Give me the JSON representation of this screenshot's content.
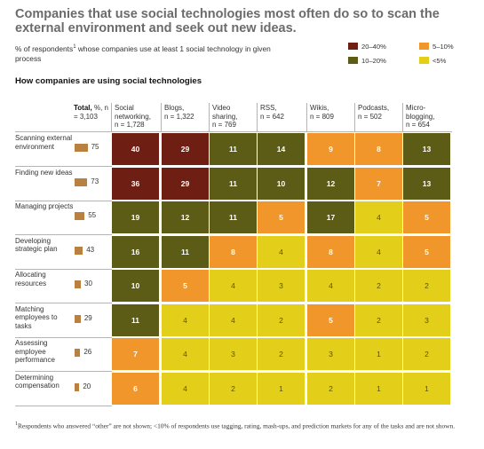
{
  "title": "Companies that use social technologies most often do so to scan the external environment and seek out new ideas.",
  "subtitle_pre": "% of respondents",
  "subtitle_sup": "1",
  "subtitle_post": " whose companies use at least 1 social technology in given process",
  "legend": [
    {
      "label": "20–40%",
      "color": "#6e1e12"
    },
    {
      "label": "5–10%",
      "color": "#f0962a"
    },
    {
      "label": "10–20%",
      "color": "#5d5c16"
    },
    {
      "label": "<5%",
      "color": "#e3cf1a"
    }
  ],
  "section_title": "How companies are using social technologies",
  "footnote_sup": "1",
  "footnote": "Respondents who answered “other” are not shown; <10% of respondents use tagging, rating, mash-ups, and prediction markets for any of the tasks and are not shown.",
  "chart_data": {
    "type": "heatmap",
    "total_header": {
      "label": "Total,",
      "sub": " %, n = 3,103"
    },
    "columns": [
      {
        "label": "Social networking,",
        "n": "n = 1,728"
      },
      {
        "label": "Blogs,",
        "n": "n = 1,322"
      },
      {
        "label": "Video sharing,",
        "n": "n = 769"
      },
      {
        "label": "RSS,",
        "n": "n = 642"
      },
      {
        "label": "Wikis,",
        "n": "n = 809"
      },
      {
        "label": "Podcasts,",
        "n": "n = 502"
      },
      {
        "label": "Micro-blogging,",
        "n": "n = 654"
      }
    ],
    "rows": [
      {
        "label": "Scanning external environment",
        "total": 75,
        "values": [
          40,
          29,
          11,
          14,
          9,
          8,
          13
        ]
      },
      {
        "label": "Finding new ideas",
        "total": 73,
        "values": [
          36,
          29,
          11,
          10,
          12,
          7,
          13
        ]
      },
      {
        "label": "Managing projects",
        "total": 55,
        "values": [
          19,
          12,
          11,
          5,
          17,
          4,
          5
        ]
      },
      {
        "label": "Developing strategic plan",
        "total": 43,
        "values": [
          16,
          11,
          8,
          4,
          8,
          4,
          5
        ]
      },
      {
        "label": "Allocating resources",
        "total": 30,
        "values": [
          10,
          5,
          4,
          3,
          4,
          2,
          2
        ]
      },
      {
        "label": "Matching employees to tasks",
        "total": 29,
        "values": [
          11,
          4,
          4,
          2,
          5,
          2,
          3
        ]
      },
      {
        "label": "Assessing employee performance",
        "total": 26,
        "values": [
          7,
          4,
          3,
          2,
          3,
          1,
          2
        ]
      },
      {
        "label": "Determining compensation",
        "total": 20,
        "values": [
          6,
          4,
          2,
          1,
          2,
          1,
          1
        ]
      }
    ]
  }
}
